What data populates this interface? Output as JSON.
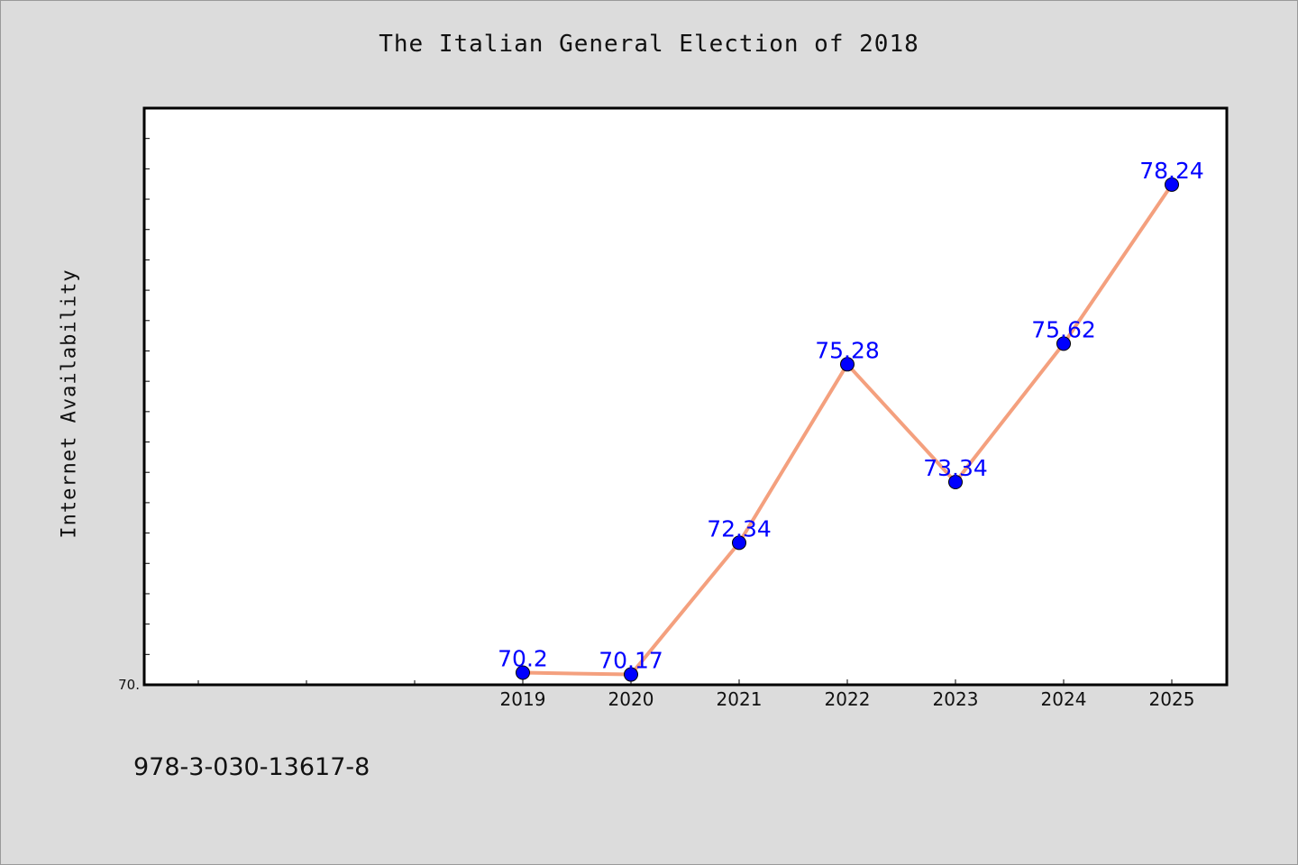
{
  "chart_data": {
    "type": "line",
    "title": "The Italian General Election of 2018",
    "xlabel": "",
    "ylabel": "Internet Availability",
    "categories": [
      "2019",
      "2020",
      "2021",
      "2022",
      "2023",
      "2024",
      "2025"
    ],
    "series": [
      {
        "values": [
          70.2,
          70.17,
          72.34,
          75.28,
          73.34,
          75.62,
          78.24
        ]
      }
    ],
    "data_labels": [
      "70.2",
      "70.17",
      "72.34",
      "75.28",
      "73.34",
      "75.62",
      "78.24"
    ],
    "y_min_label": "70.",
    "ylim": [
      70,
      79.5
    ],
    "x_axis_extra_ticks": 3,
    "grid": false,
    "line_color": "#f4a07e",
    "marker_color": "#0000ff",
    "label_color": "#0000ff"
  },
  "footer_text": "978-3-030-13617-8"
}
